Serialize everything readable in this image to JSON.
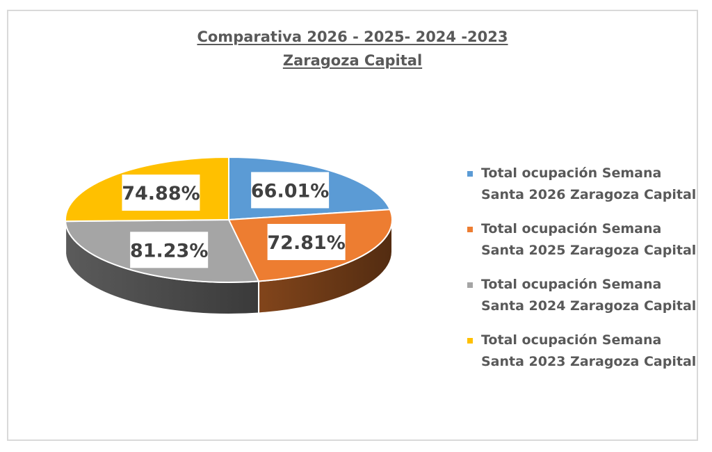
{
  "chart_data": {
    "type": "pie",
    "title": "Comparativa 2026 - 2025- 2024 -2023",
    "subtitle": "Zaragoza Capital",
    "legend_position": "right",
    "series": [
      {
        "name": "Total ocupación Semana Santa 2026 Zaragoza Capital",
        "value": 66.01,
        "label": "66.01%",
        "color": "#5b9bd5"
      },
      {
        "name": "Total ocupación Semana Santa 2025 Zaragoza Capital",
        "value": 72.81,
        "label": "72.81%",
        "color": "#ed7d31"
      },
      {
        "name": "Total ocupación Semana Santa 2024 Zaragoza Capital",
        "value": 81.23,
        "label": "81.23%",
        "color": "#a5a5a5"
      },
      {
        "name": "Total ocupación Semana Santa 2023 Zaragoza Capital",
        "value": 74.88,
        "label": "74.88%",
        "color": "#ffc000"
      }
    ],
    "legend_lines": [
      [
        "Total ocupación Semana",
        "Santa 2026 Zaragoza Capital"
      ],
      [
        "Total ocupación Semana",
        "Santa 2025 Zaragoza Capital"
      ],
      [
        "Total ocupación Semana",
        "Santa 2024 Zaragoza Capital"
      ],
      [
        "Total ocupación Semana",
        "Santa 2023 Zaragoza Capital"
      ]
    ]
  }
}
